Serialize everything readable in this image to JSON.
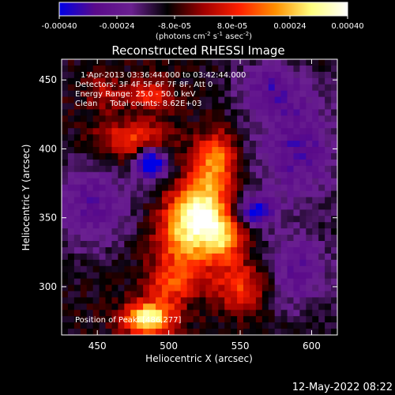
{
  "chart_data": {
    "type": "heatmap",
    "title": "Reconstructed RHESSI Image",
    "colorbar": {
      "ticks": [
        "-0.00040",
        "-0.00024",
        "-8.0e-05",
        "8.0e-05",
        "0.00024",
        "0.00040"
      ],
      "tick_values": [
        -0.0004,
        -0.00024,
        -8e-05,
        8e-05,
        0.00024,
        0.0004
      ],
      "range": [
        -0.0004,
        0.0004
      ],
      "unit_label_main": "(photons cm",
      "unit_label_exp1": "-2",
      "unit_label_mid": " s",
      "unit_label_exp2": "-1",
      "unit_label_end": " asec",
      "unit_label_exp3": "-2",
      "unit_label_close": ")",
      "colors": [
        "#0000e6",
        "#5a0a8a",
        "#6a2090",
        "#000000",
        "#a00000",
        "#ff2000",
        "#ff9000",
        "#ffff80",
        "#ffffff"
      ]
    },
    "xlabel": "Heliocentric X (arcsec)",
    "ylabel": "Heliocentric Y (arcsec)",
    "xlim": [
      425,
      618
    ],
    "ylim": [
      265,
      465
    ],
    "xticks": [
      450,
      500,
      550,
      600
    ],
    "yticks": [
      300,
      350,
      400,
      450
    ],
    "annotations": [
      "1-Apr-2013 03:36:44.000 to 03:42:44.000",
      "Detectors: 3F 4F 5F 6F 7F 8F, Att 0",
      "Energy Range: 25.0 - 50.0 keV",
      "Clean     Total counts: 8.62E+03"
    ],
    "peak_label": "Position of Peak: [486,277]",
    "peak": [
      486,
      277
    ],
    "sources": [
      {
        "x": 522,
        "y": 355,
        "sx": 14,
        "sy": 16,
        "amp": 0.00042
      },
      {
        "x": 512,
        "y": 330,
        "sx": 16,
        "sy": 18,
        "amp": 0.00025
      },
      {
        "x": 533,
        "y": 392,
        "sx": 10,
        "sy": 14,
        "amp": 0.0003
      },
      {
        "x": 475,
        "y": 405,
        "sx": 18,
        "sy": 10,
        "amp": 0.00024
      },
      {
        "x": 486,
        "y": 277,
        "sx": 12,
        "sy": 8,
        "amp": 0.00045
      },
      {
        "x": 552,
        "y": 300,
        "sx": 14,
        "sy": 12,
        "amp": 0.00022
      },
      {
        "x": 540,
        "y": 335,
        "sx": 10,
        "sy": 12,
        "amp": 0.00024
      },
      {
        "x": 488,
        "y": 440,
        "sx": 10,
        "sy": 8,
        "amp": 0.0002
      },
      {
        "x": 455,
        "y": 440,
        "sx": 10,
        "sy": 10,
        "amp": 0.00012
      },
      {
        "x": 500,
        "y": 300,
        "sx": 12,
        "sy": 10,
        "amp": 0.00018
      },
      {
        "x": 488,
        "y": 390,
        "sx": 8,
        "sy": 8,
        "amp": -0.00045
      },
      {
        "x": 560,
        "y": 355,
        "sx": 10,
        "sy": 8,
        "amp": -0.00028
      },
      {
        "x": 445,
        "y": 360,
        "sx": 22,
        "sy": 24,
        "amp": -0.00018
      },
      {
        "x": 590,
        "y": 400,
        "sx": 22,
        "sy": 30,
        "amp": -0.0002
      },
      {
        "x": 590,
        "y": 310,
        "sx": 18,
        "sy": 20,
        "amp": -0.00018
      },
      {
        "x": 570,
        "y": 445,
        "sx": 18,
        "sy": 14,
        "amp": -0.00016
      }
    ]
  },
  "footer": {
    "date": "12-May-2022 08:22"
  }
}
